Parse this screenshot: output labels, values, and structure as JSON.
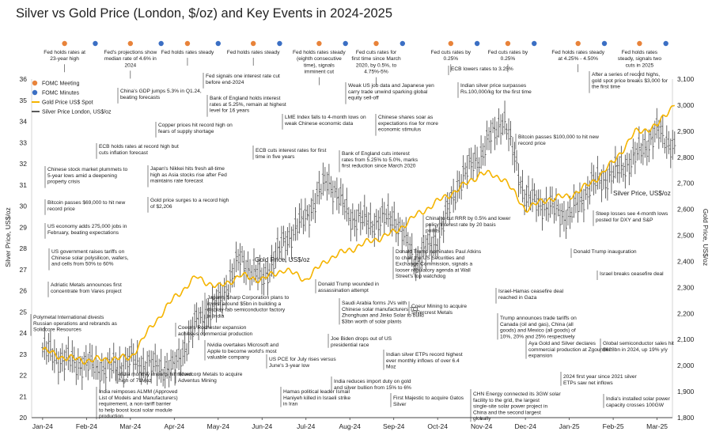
{
  "chart_data": {
    "type": "line",
    "title": "Silver vs Gold Price (London, $/oz) and Key Events in 2024-2025",
    "x_ticks": [
      "Jan-24",
      "Feb-24",
      "Mar-24",
      "Apr-24",
      "May-24",
      "Jun-24",
      "Jul-24",
      "Aug-24",
      "Sep-24",
      "Oct-24",
      "Nov-24",
      "Dec-24",
      "Jan-25",
      "Feb-25",
      "Mar-25"
    ],
    "left_axis": {
      "label": "Silver Price, US$/oz",
      "range": [
        20,
        36
      ],
      "ticks": [
        "20",
        "21",
        "22",
        "23",
        "24",
        "25",
        "26",
        "27",
        "28",
        "29",
        "30",
        "31",
        "32",
        "33",
        "34",
        "35",
        "36"
      ]
    },
    "right_axis": {
      "label": "Gold Price, US$/oz",
      "range": [
        1800,
        3100
      ],
      "ticks": [
        "1,800",
        "1,900",
        "2,000",
        "2,100",
        "2,200",
        "2,300",
        "2,400",
        "2,500",
        "2,600",
        "2,700",
        "2,800",
        "2,900",
        "3,000",
        "3,100"
      ]
    },
    "legend": [
      {
        "label": "FOMC Meeting",
        "color": "#e8833a"
      },
      {
        "label": "FOMC Minutes",
        "color": "#3b6fc4"
      },
      {
        "label": "Gold Price US$ Spot",
        "color": "#f5b400"
      },
      {
        "label": "Silver Price London, US$/oz",
        "color": "#5a5a5a"
      }
    ],
    "series_labels": {
      "gold": "Gold Price, US$/oz",
      "silver": "Silver Price, US$/oz"
    },
    "series": [
      {
        "name": "Silver Price London, US$/oz",
        "axis": "left",
        "style": "ohlc-bars",
        "color": "#5a5a5a",
        "x": [
          0.0,
          0.5,
          1.0,
          1.5,
          2.0,
          2.5,
          3.0,
          3.5,
          4.0,
          4.5,
          5.0,
          5.5,
          6.0,
          6.5,
          7.0,
          7.5,
          8.0,
          8.5,
          9.0,
          9.5,
          10.0,
          10.5,
          11.0,
          11.5,
          12.0,
          12.5,
          13.0,
          13.5,
          14.0,
          14.4
        ],
        "y": [
          23.2,
          22.7,
          22.5,
          22.3,
          22.7,
          22.4,
          22.3,
          24.5,
          25.4,
          27.5,
          26.5,
          28.3,
          29.5,
          31.3,
          29.5,
          29.2,
          29.5,
          27.4,
          28.5,
          31.2,
          32.5,
          34.2,
          30.4,
          30.0,
          29.5,
          31.0,
          31.5,
          32.3,
          33.5,
          32.8
        ]
      },
      {
        "name": "Gold Price US$ Spot",
        "axis": "right",
        "style": "line",
        "color": "#f5b400",
        "x": [
          0.0,
          0.5,
          1.0,
          1.5,
          2.0,
          2.5,
          3.0,
          3.5,
          4.0,
          4.5,
          5.0,
          5.5,
          6.0,
          6.5,
          7.0,
          7.5,
          8.0,
          8.5,
          9.0,
          9.5,
          10.0,
          10.5,
          11.0,
          11.5,
          12.0,
          12.5,
          13.0,
          13.5,
          14.0,
          14.4
        ],
        "y": [
          2060,
          2030,
          2020,
          2025,
          2030,
          2155,
          2260,
          2340,
          2300,
          2345,
          2330,
          2370,
          2330,
          2410,
          2445,
          2480,
          2510,
          2575,
          2630,
          2680,
          2740,
          2720,
          2600,
          2640,
          2650,
          2700,
          2780,
          2895,
          2920,
          3010
        ]
      }
    ],
    "events_top": [
      {
        "x": 0.5,
        "kind": "meeting",
        "text": "Fed holds rates at 23-year high"
      },
      {
        "x": 1.2,
        "kind": "minutes",
        "text": ""
      },
      {
        "x": 2.0,
        "kind": "meeting",
        "text": "Fed's projections show median rate of 4.6% in 2024"
      },
      {
        "x": 2.7,
        "kind": "minutes",
        "text": ""
      },
      {
        "x": 3.3,
        "kind": "meeting",
        "text": "Fed holds rates steady"
      },
      {
        "x": 4.0,
        "kind": "minutes",
        "text": ""
      },
      {
        "x": 4.8,
        "kind": "meeting",
        "text": "Fed holds rates steady"
      },
      {
        "x": 5.4,
        "kind": "minutes",
        "text": ""
      },
      {
        "x": 6.3,
        "kind": "meeting",
        "text": "Fed holds rates steady (eighth consecutive time), signals imminent cut"
      },
      {
        "x": 6.9,
        "kind": "minutes",
        "text": ""
      },
      {
        "x": 7.6,
        "kind": "meeting",
        "text": "Fed cuts rates for first time since March 2020, by 0.5%, to 4.75%-5%"
      },
      {
        "x": 8.2,
        "kind": "minutes",
        "text": ""
      },
      {
        "x": 9.3,
        "kind": "meeting",
        "text": "Fed cuts rates by 0.25%"
      },
      {
        "x": 9.9,
        "kind": "minutes",
        "text": ""
      },
      {
        "x": 10.6,
        "kind": "meeting",
        "text": "Fed cuts rates by 0.25%"
      },
      {
        "x": 11.2,
        "kind": "minutes",
        "text": ""
      },
      {
        "x": 12.2,
        "kind": "meeting",
        "text": "Fed holds rates steady at 4.25% - 4.50%"
      },
      {
        "x": 12.8,
        "kind": "minutes",
        "text": ""
      },
      {
        "x": 13.6,
        "kind": "meeting",
        "text": "Fed holds rates steady, signals two cuts in 2025"
      },
      {
        "x": 14.2,
        "kind": "minutes",
        "text": ""
      }
    ],
    "annotations": [
      "China's GDP jumps 5.3% in Q1.24, beating forecasts",
      "Fed signals one interest rate cut before end-2024",
      "Bank of England holds interest rates at 5.25%, remain at highest level for 16 years",
      "Copper prices hit record high on fears of supply shortage",
      "ECB holds rates at record high but cuts inflation forecast",
      "Chinese stock market plummets to 5-year lows amid a deepening property crisis",
      "Japan's Nikkei hits fresh all-time high as Asia stocks rise after Fed maintains rate forecast",
      "ECB cuts interest rates for first time in five years",
      "Bitcoin passes $69,000 to hit new record price",
      "Gold price surges to a record high of $2,206",
      "US economy adds 275,000 jobs in February, beating expectations",
      "US government raises tariffs on Chinese solar polysilicon, wafers, and cells from 50% to 60%",
      "Adriatic Metals announces first concentrate from Vares project",
      "Polymetal International divests Russian operations and rebrands as Solidcore Resources",
      "Japan's Sharp Corporation plans to invest around $5bn in building a display-fab semiconductor factory in India",
      "Coeur's Rochester expansion achieves commercial production",
      "Nvidia overtakes Microsoft and Apple to become world's most valuable company",
      "India monthly imports hit record high of 71Moz",
      "Silvercorp Metals to acquire Adventus Mining",
      "India reimposes ALMM (Approved List of Models and Manufacturers) requirement, a non-tariff barrier to help boost local solar module production",
      "LME Index falls to 4-month lows on weak Chinese economic data",
      "Weak US job data and Japanese yen carry trade unwind sparking global equity sell-off",
      "Bank of England cuts interest rates from 5.25% to 5.0%, marks first reduction since March 2020",
      "Chinese shares soar as expectations rise for more economic stimulus",
      "ECB lowers rates to 3.25%",
      "Indian silver price surpasses Rs.100,000/kg for the first time",
      "China to cut RRR by 0.5% and lower policy interest rate by 20 basis points",
      "Donald Trump wounded in assassination attempt",
      "Saudi Arabia forms JVs with Chinese solar manufacturers TCL Zhonghuan and Jinko Solar to build $3bn worth of solar plants",
      "Joe Biden drops out of US presidential race",
      "US PCE for July rises versus June's 3-year low",
      "Indian silver ETPs record highest ever monthly inflows of over 6.4 Moz",
      "India reduces import duty on gold and silver bullion from 15% to 6%",
      "Hamas political leader Ismail Haniyeh killed in Israeli strike in Iran",
      "First Majestic to acquire Gatos Silver",
      "Donald Trump nominates Paul Atkins to chair the US Securities and Exchange Commission, signals a looser regulatory agenda at Wall Street's top watchdog",
      "Coeur Mining to acquire Silvercrest Metals",
      "Bitcoin passes $100,000 to hit new record price",
      "Israel-Hamas ceasefire deal reached in Gaza",
      "Trump announces trade tariffs on Canada (oil and gas), China (all goods) and Mexico (all goods) of 10%, 20% and 25% respectively",
      "Aya Gold and Silver declares commercial production at Zgounder expansion",
      "2024 first year since 2021 silver ETPs saw net inflows",
      "CHN Energy connected its 3GW solar facility to the grid, the largest single-site solar power project in China and the second largest globally",
      "After a series of record highs, gold spot price breaks $3,000 for the first time",
      "Steep losses see 4-month lows posted for DXY and S&P",
      "Donald Trump inauguration",
      "Israel breaks ceasefire deal",
      "Global semiconductor sales hit $628bn in 2024, up 19% y/y",
      "India's installed solar power capacity crosses 100GW"
    ]
  }
}
